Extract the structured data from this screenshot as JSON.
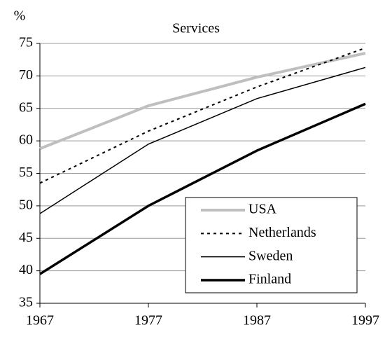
{
  "chart_data": {
    "type": "line",
    "title": "Services",
    "y_label": "%",
    "x": [
      1967,
      1977,
      1987,
      1997
    ],
    "xlim": [
      1967,
      1997
    ],
    "xticks": [
      1967,
      1977,
      1987,
      1997
    ],
    "ylim": [
      35,
      75
    ],
    "yticks": [
      35,
      40,
      45,
      50,
      55,
      60,
      65,
      70,
      75
    ],
    "grid": true,
    "legend": "lower right",
    "series": [
      {
        "name": "USA",
        "color": "#bfbfbf",
        "width": 4,
        "dash": "solid",
        "values": [
          58.8,
          65.4,
          69.8,
          73.5
        ]
      },
      {
        "name": "Netherlands",
        "color": "#000000",
        "width": 2,
        "dash": "dotted",
        "values": [
          53.5,
          61.5,
          68.3,
          74.3
        ]
      },
      {
        "name": "Sweden",
        "color": "#000000",
        "width": 1.5,
        "dash": "solid",
        "values": [
          48.8,
          59.5,
          66.5,
          71.3
        ]
      },
      {
        "name": "Finland",
        "color": "#000000",
        "width": 3.5,
        "dash": "solid",
        "values": [
          39.5,
          50.0,
          58.5,
          65.7
        ]
      }
    ]
  }
}
